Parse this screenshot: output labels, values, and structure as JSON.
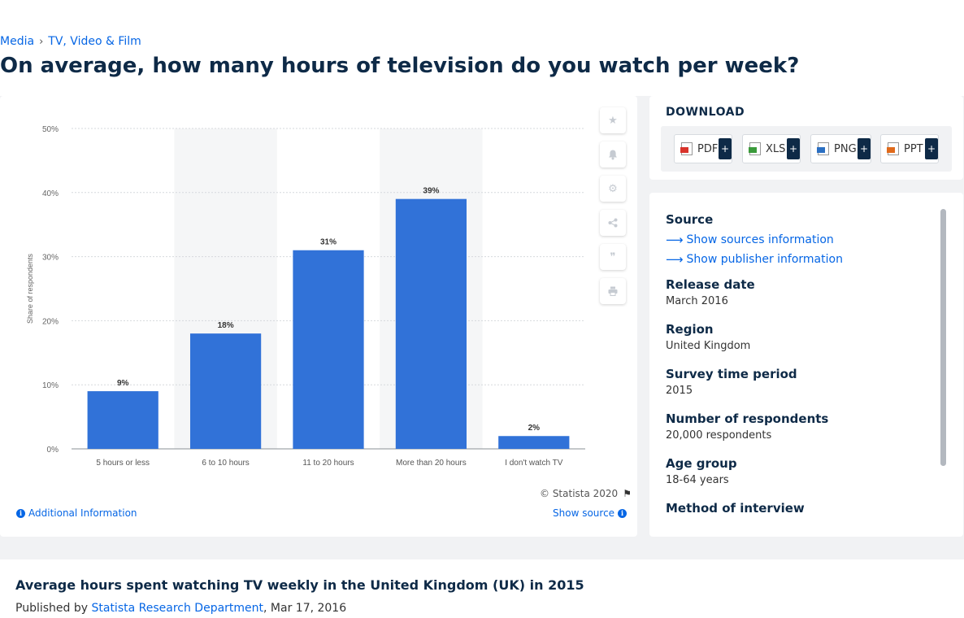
{
  "breadcrumb": {
    "items": [
      "Media",
      "TV, Video & Film"
    ],
    "separator": "›"
  },
  "page_title": "On average, how many hours of television do you watch per week?",
  "chart_data": {
    "type": "bar",
    "categories": [
      "5 hours or less",
      "6 to 10 hours",
      "11 to 20 hours",
      "More than 20 hours",
      "I don't watch TV"
    ],
    "values": [
      9,
      18,
      31,
      39,
      2
    ],
    "value_labels": [
      "9%",
      "18%",
      "31%",
      "39%",
      "2%"
    ],
    "ylabel": "Share of respondents",
    "ylim": [
      0,
      50
    ],
    "yticks": [
      "0%",
      "10%",
      "20%",
      "30%",
      "40%",
      "50%"
    ],
    "grid": true,
    "bar_color": "#3172d8",
    "band_color": "#f5f6f7"
  },
  "chart_footer": {
    "copyright": "© Statista 2020",
    "additional_info": "Additional Information",
    "show_source": "Show source"
  },
  "tools": [
    "star-icon",
    "bell-icon",
    "gear-icon",
    "share-icon",
    "quote-icon",
    "print-icon"
  ],
  "download": {
    "title": "DOWNLOAD",
    "buttons": [
      {
        "label": "PDF",
        "color": "#d9332b"
      },
      {
        "label": "XLS",
        "color": "#3a9a3a"
      },
      {
        "label": "PNG",
        "color": "#2b6fc2"
      },
      {
        "label": "PPT",
        "color": "#e06a1b"
      }
    ],
    "plus": "+"
  },
  "meta": {
    "source_label": "Source",
    "show_sources": "Show sources information",
    "show_publisher": "Show publisher information",
    "fields": [
      {
        "label": "Release date",
        "value": "March 2016"
      },
      {
        "label": "Region",
        "value": "United Kingdom"
      },
      {
        "label": "Survey time period",
        "value": "2015"
      },
      {
        "label": "Number of respondents",
        "value": "20,000 respondents"
      },
      {
        "label": "Age group",
        "value": "18-64 years"
      },
      {
        "label": "Method of interview",
        "value": ""
      }
    ]
  },
  "bottom": {
    "title": "Average hours spent watching TV weekly in the United Kingdom (UK) in 2015",
    "published_prefix": "Published by",
    "publisher": "Statista Research Department",
    "date": ", Mar 17, 2016"
  }
}
